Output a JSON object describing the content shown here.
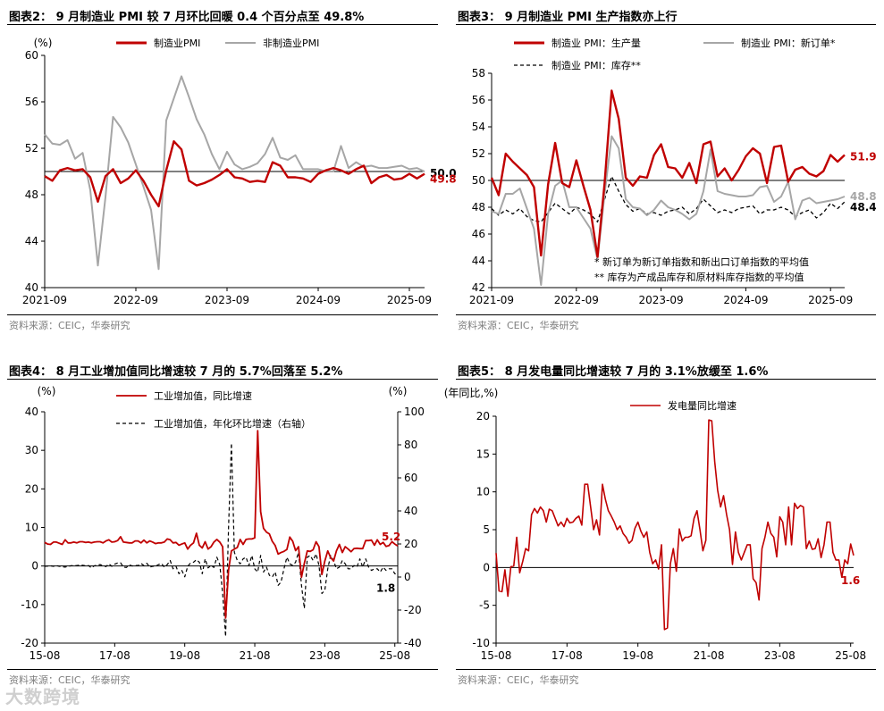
{
  "colors": {
    "red": "#c00000",
    "gray": "#a6a6a6",
    "black": "#000000"
  },
  "sources": [
    "资料来源：CEIC，华泰研究",
    "资料来源：CEIC，华泰研究",
    "资料来源：CEIC，华泰研究",
    "资料来源：CEIC，华泰研究"
  ],
  "watermark": "大数跨境",
  "chart_data": [
    {
      "id": "c1",
      "type": "line",
      "title": "图表2：  9 月制造业 PMI 较 7 月环比回暖 0.4 个百分点至 49.8%",
      "ylabel": "(%)",
      "ylim": [
        40,
        60
      ],
      "yticks": [
        40,
        44,
        48,
        52,
        56,
        60
      ],
      "xlim": [
        0,
        50
      ],
      "xticks": [
        {
          "x": 0,
          "label": "2021-09"
        },
        {
          "x": 12,
          "label": "2022-09"
        },
        {
          "x": 24,
          "label": "2023-09"
        },
        {
          "x": 36,
          "label": "2024-09"
        },
        {
          "x": 48,
          "label": "2025-09"
        }
      ],
      "reference": 50,
      "series": [
        {
          "name": "制造业PMI",
          "color": "#c00000",
          "width": 2.4,
          "dash": "",
          "values": [
            49.6,
            49.2,
            50.1,
            50.3,
            50.1,
            50.2,
            49.5,
            47.4,
            49.6,
            50.2,
            49.0,
            49.4,
            50.1,
            49.2,
            48.0,
            47.0,
            50.1,
            52.6,
            51.9,
            49.2,
            48.8,
            49.0,
            49.3,
            49.7,
            50.2,
            49.5,
            49.4,
            49.1,
            49.2,
            49.1,
            50.8,
            50.5,
            49.5,
            49.5,
            49.4,
            49.1,
            49.8,
            50.1,
            50.3,
            50.1,
            49.8,
            50.2,
            50.5,
            49.0,
            49.5,
            49.7,
            49.3,
            49.4,
            49.8,
            49.4,
            49.8
          ]
        },
        {
          "name": "非制造业PMI",
          "color": "#a6a6a6",
          "width": 2,
          "dash": "",
          "values": [
            53.2,
            52.4,
            52.3,
            52.7,
            51.1,
            51.6,
            48.4,
            41.9,
            47.8,
            54.7,
            53.8,
            52.5,
            50.6,
            48.7,
            46.7,
            41.6,
            54.4,
            56.3,
            58.2,
            56.4,
            54.5,
            53.2,
            51.5,
            50.2,
            51.7,
            50.6,
            50.2,
            50.4,
            50.7,
            51.5,
            52.9,
            51.2,
            51.0,
            51.4,
            50.2,
            50.2,
            50.2,
            50.0,
            50.0,
            52.2,
            50.3,
            50.8,
            50.4,
            50.5,
            50.3,
            50.3,
            50.4,
            50.5,
            50.2,
            50.3,
            50.0
          ]
        }
      ],
      "end_labels": [
        {
          "text": "50.0",
          "series": 1,
          "color": "#000000"
        },
        {
          "text": "49.8",
          "series": 0,
          "color": "#c00000"
        }
      ]
    },
    {
      "id": "c2",
      "type": "line",
      "title": "图表3：  9 月制造业 PMI 生产指数亦上行",
      "ylim": [
        42,
        58
      ],
      "yticks": [
        42,
        44,
        46,
        48,
        50,
        52,
        54,
        56,
        58
      ],
      "xlim": [
        0,
        50
      ],
      "xticks": [
        {
          "x": 0,
          "label": "2021-09"
        },
        {
          "x": 12,
          "label": "2022-09"
        },
        {
          "x": 24,
          "label": "2023-09"
        },
        {
          "x": 36,
          "label": "2024-09"
        },
        {
          "x": 48,
          "label": "2025-09"
        }
      ],
      "reference": 50,
      "series": [
        {
          "name": "制造业 PMI：生产量",
          "color": "#c00000",
          "width": 2.4,
          "dash": "",
          "values": [
            50.2,
            48.9,
            52.0,
            51.4,
            50.9,
            50.4,
            49.5,
            44.4,
            49.7,
            52.8,
            49.8,
            49.5,
            51.5,
            49.6,
            47.8,
            44.3,
            49.8,
            56.7,
            54.6,
            50.2,
            49.6,
            50.3,
            50.2,
            51.9,
            52.7,
            51.0,
            50.9,
            50.2,
            51.3,
            49.8,
            52.7,
            52.9,
            50.3,
            50.9,
            50.0,
            50.8,
            51.8,
            52.4,
            52.0,
            49.8,
            52.5,
            52.6,
            49.9,
            50.8,
            51.0,
            50.5,
            50.3,
            50.7,
            51.9,
            51.4,
            51.9
          ]
        },
        {
          "name": "制造业 PMI：新订单*",
          "color": "#a6a6a6",
          "width": 2,
          "dash": "",
          "values": [
            47.7,
            47.5,
            49.0,
            49.0,
            49.4,
            47.9,
            46.4,
            42.2,
            47.5,
            49.6,
            50.0,
            48.0,
            48.0,
            47.2,
            46.4,
            44.1,
            49.0,
            53.3,
            52.4,
            48.6,
            48.0,
            47.9,
            47.4,
            47.8,
            48.5,
            48.0,
            47.8,
            47.5,
            47.1,
            47.5,
            49.2,
            52.3,
            49.2,
            49.0,
            48.9,
            48.8,
            48.8,
            48.9,
            49.5,
            49.6,
            48.4,
            48.8,
            49.9,
            47.1,
            48.5,
            48.7,
            48.3,
            48.4,
            48.5,
            48.6,
            48.8
          ]
        },
        {
          "name": "制造业 PMI：库存**",
          "color": "#000000",
          "width": 1.3,
          "dash": "4,3",
          "values": [
            47.9,
            47.4,
            47.8,
            47.5,
            47.9,
            47.3,
            47.0,
            46.9,
            47.6,
            48.3,
            47.9,
            47.5,
            48.0,
            47.8,
            47.5,
            46.9,
            48.6,
            50.3,
            49.2,
            48.2,
            47.7,
            47.9,
            47.5,
            47.6,
            47.4,
            47.7,
            47.8,
            48.0,
            47.5,
            47.9,
            48.6,
            48.1,
            47.6,
            47.8,
            47.6,
            47.9,
            48.0,
            48.1,
            47.5,
            47.8,
            47.8,
            48.0,
            47.8,
            47.3,
            47.6,
            47.8,
            47.2,
            47.6,
            48.3,
            47.9,
            48.4
          ]
        }
      ],
      "end_labels": [
        {
          "text": "51.9",
          "series": 0,
          "color": "#c00000"
        },
        {
          "text": "48.8",
          "series": 1,
          "color": "#a6a6a6"
        },
        {
          "text": "48.4",
          "series": 2,
          "color": "#000000"
        }
      ],
      "notes": [
        "*  新订单为新订单指数和新出口订单指数的平均值",
        "**  库存为产成品库存和原材料库存指数的平均值"
      ]
    },
    {
      "id": "c3",
      "type": "line",
      "title": "图表4：  8 月工业增加值同比增速较 7 月的 5.7%回落至 5.2%",
      "ylabel": "(%)",
      "y2label": "(%)",
      "ylim": [
        -20,
        40
      ],
      "yticks": [
        -20,
        -10,
        0,
        10,
        20,
        30,
        40
      ],
      "y2lim": [
        -40,
        100
      ],
      "y2ticks": [
        -40,
        -20,
        0,
        20,
        40,
        60,
        80,
        100
      ],
      "xlim": [
        0,
        121
      ],
      "xticks": [
        {
          "x": 0,
          "label": "15-08"
        },
        {
          "x": 24,
          "label": "17-08"
        },
        {
          "x": 48,
          "label": "19-08"
        },
        {
          "x": 72,
          "label": "21-08"
        },
        {
          "x": 96,
          "label": "23-08"
        },
        {
          "x": 120,
          "label": "25-08"
        }
      ],
      "reference": 0,
      "series": [
        {
          "name": "工业增加值，同比增速",
          "color": "#c00000",
          "width": 1.8,
          "dash": "",
          "axis": "left",
          "values": [
            6.1,
            5.7,
            5.6,
            6.2,
            6.2,
            5.9,
            5.6,
            6.8,
            6.0,
            6.0,
            6.2,
            6.0,
            6.3,
            6.3,
            6.1,
            6.2,
            6.0,
            6.2,
            6.3,
            6.3,
            6.0,
            6.5,
            6.8,
            6.2,
            6.3,
            6.6,
            7.6,
            6.2,
            6.1,
            6.0,
            6.0,
            6.5,
            6.5,
            6.0,
            6.7,
            6.0,
            6.5,
            6.2,
            5.8,
            6.0,
            6.0,
            6.2,
            7.0,
            6.8,
            6.0,
            6.1,
            5.4,
            5.7,
            6.0,
            4.4,
            5.4,
            6.0,
            8.5,
            5.4,
            4.7,
            6.3,
            4.4,
            5.0,
            6.2,
            6.9,
            6.2,
            5.0,
            -13.5,
            -1.1,
            3.9,
            4.4,
            4.8,
            6.9,
            5.6,
            6.9,
            7.0,
            7.0,
            7.3,
            35.1,
            14.1,
            9.8,
            8.8,
            8.3,
            6.4,
            5.3,
            3.1,
            3.5,
            3.8,
            4.3,
            7.5,
            6.4,
            4.0,
            5.0,
            -2.9,
            0.7,
            3.9,
            3.8,
            4.2,
            6.3,
            5.0,
            -2.2,
            1.3,
            3.9,
            2.2,
            1.3,
            3.9,
            5.6,
            3.5,
            5.0,
            4.4,
            3.7,
            4.5,
            4.6,
            4.5,
            4.5,
            6.6,
            6.6,
            6.7,
            5.4,
            6.8,
            5.6,
            6.1,
            5.1,
            5.3,
            6.3,
            5.7,
            5.2
          ]
        },
        {
          "name": "工业增加值，年化环比增速（右轴）",
          "color": "#000000",
          "width": 1.2,
          "dash": "4,3",
          "axis": "right",
          "values": [
            6.5,
            6.6,
            6.8,
            6.5,
            7.0,
            6.5,
            6.2,
            6.0,
            6.5,
            6.8,
            7.0,
            6.9,
            7.3,
            7.1,
            6.8,
            7.0,
            5.5,
            6.8,
            7.2,
            7.5,
            6.8,
            6.3,
            8.0,
            6.5,
            7.8,
            8.5,
            8.6,
            6.0,
            5.8,
            7.3,
            6.7,
            7.0,
            7.0,
            8.2,
            7.0,
            8.3,
            6.0,
            6.5,
            6.6,
            7.5,
            8.2,
            6.0,
            7.5,
            10.0,
            5.0,
            6.5,
            2.0,
            4.0,
            0.1,
            6.5,
            8.5,
            9.0,
            10.5,
            9.0,
            2.0,
            11.0,
            5.5,
            7.0,
            5.8,
            12.0,
            7.5,
            -10.0,
            -36.0,
            30.0,
            81.0,
            15.0,
            10.0,
            8.0,
            11.0,
            12.0,
            7.0,
            13.0,
            5.0,
            3.0,
            13.0,
            3.0,
            6.0,
            1.0,
            0.0,
            3.0,
            -5.0,
            -3.0,
            5.0,
            12.0,
            8.0,
            7.0,
            9.0,
            15.0,
            -5.0,
            -19.0,
            12.0,
            13.0,
            10.0,
            14.0,
            7.0,
            -10.0,
            -8.0,
            5.0,
            13.0,
            10.0,
            5.0,
            6.0,
            10.0,
            8.0,
            5.0,
            5.0,
            7.0,
            6.0,
            11.0,
            6.0,
            11.0,
            6.0,
            4.0,
            5.0,
            5.0,
            3.0,
            6.0,
            4.0,
            5.0,
            5.0,
            2.0,
            1.8
          ]
        }
      ],
      "end_labels": [
        {
          "text": "5.2",
          "series": 0,
          "color": "#c00000"
        },
        {
          "text": "1.8",
          "series": 1,
          "color": "#000000"
        }
      ]
    },
    {
      "id": "c4",
      "type": "line",
      "title": "图表5：  8 月发电量同比增速较 7 月的 3.1%放缓至 1.6%",
      "ylabel": "(年同比,%)",
      "ylim": [
        -10,
        20
      ],
      "yticks": [
        -10,
        -5,
        0,
        5,
        10,
        15,
        20
      ],
      "xlim": [
        0,
        121
      ],
      "xticks": [
        {
          "x": 0,
          "label": "15-08"
        },
        {
          "x": 24,
          "label": "17-08"
        },
        {
          "x": 48,
          "label": "19-08"
        },
        {
          "x": 72,
          "label": "21-08"
        },
        {
          "x": 96,
          "label": "23-08"
        },
        {
          "x": 120,
          "label": "25-08"
        }
      ],
      "reference": 0,
      "series": [
        {
          "name": "发电量同比增速",
          "color": "#c00000",
          "width": 1.6,
          "dash": "",
          "values": [
            1.9,
            -3.1,
            -3.2,
            -0.3,
            -3.8,
            0.1,
            0.2,
            4.0,
            -0.7,
            0.8,
            2.5,
            2.2,
            7.0,
            7.8,
            7.2,
            8.0,
            7.5,
            6.0,
            7.7,
            7.5,
            6.5,
            5.5,
            6.0,
            5.4,
            6.5,
            5.9,
            6.0,
            6.5,
            6.8,
            5.6,
            11.0,
            11.0,
            8.0,
            5.0,
            6.3,
            4.3,
            11.0,
            9.0,
            7.5,
            6.8,
            6.0,
            5.0,
            5.5,
            4.5,
            4.0,
            3.2,
            3.6,
            5.2,
            6.0,
            4.8,
            4.0,
            4.7,
            2.0,
            0.5,
            1.0,
            -0.2,
            3.0,
            -8.2,
            -8.0,
            0.5,
            2.5,
            -0.5,
            5.1,
            3.5,
            4.0,
            4.0,
            4.2,
            6.5,
            7.5,
            5.0,
            2.2,
            3.6,
            19.5,
            19.4,
            14.0,
            10.2,
            8.0,
            9.5,
            7.0,
            5.0,
            0.4,
            4.7,
            2.0,
            1.0,
            2.0,
            3.0,
            3.0,
            -1.5,
            -2.0,
            -4.3,
            2.5,
            4.0,
            6.0,
            4.5,
            4.0,
            1.4,
            6.7,
            6.0,
            3.0,
            8.0,
            3.0,
            8.5,
            7.8,
            8.2,
            8.0,
            2.5,
            3.5,
            2.4,
            2.5,
            3.8,
            1.3,
            3.0,
            6.0,
            6.0,
            2.0,
            1.0,
            1.0,
            -1.3,
            1.0,
            0.5,
            3.1,
            1.6
          ]
        }
      ],
      "end_labels": [
        {
          "text": "1.6",
          "series": 0,
          "color": "#c00000"
        }
      ]
    }
  ]
}
